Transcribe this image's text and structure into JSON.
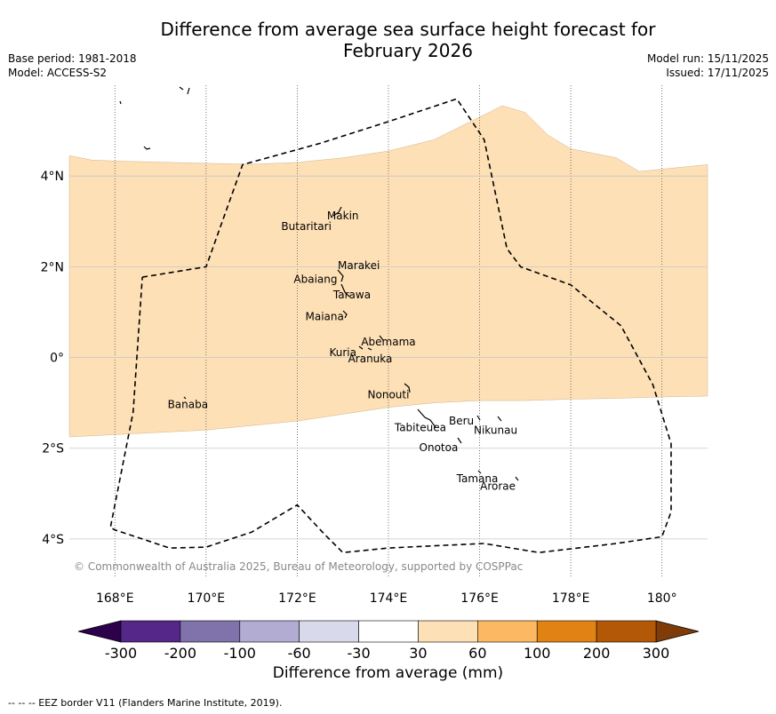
{
  "header": {
    "title_line1": "Difference from average sea surface height forecast for",
    "title_line2": "February 2026",
    "base_period": "Base period: 1981-2018",
    "model": "Model: ACCESS-S2",
    "model_run": "Model run: 15/11/2025",
    "issued": "Issued: 17/11/2025"
  },
  "map": {
    "extent_lon": [
      167,
      181
    ],
    "extent_lat": [
      -5,
      6
    ],
    "lon_ticks": [
      {
        "value": 168,
        "label": "168°E"
      },
      {
        "value": 170,
        "label": "170°E"
      },
      {
        "value": 172,
        "label": "172°E"
      },
      {
        "value": 174,
        "label": "174°E"
      },
      {
        "value": 176,
        "label": "176°E"
      },
      {
        "value": 178,
        "label": "178°E"
      },
      {
        "value": 180,
        "label": "180°"
      }
    ],
    "lat_ticks": [
      {
        "value": 4,
        "label": "4°N"
      },
      {
        "value": 2,
        "label": "2°N"
      },
      {
        "value": 0,
        "label": "0°"
      },
      {
        "value": -2,
        "label": "2°S"
      },
      {
        "value": -4,
        "label": "4°S"
      }
    ],
    "anomaly_band": {
      "range_mm": "30 to 60",
      "color": "#fee0b6",
      "north_edge": [
        [
          167,
          4.45
        ],
        [
          167.5,
          4.35
        ],
        [
          168,
          4.33
        ],
        [
          170,
          4.28
        ],
        [
          171,
          4.26
        ],
        [
          172,
          4.3
        ],
        [
          173,
          4.4
        ],
        [
          174,
          4.55
        ],
        [
          175,
          4.8
        ],
        [
          176,
          5.3
        ],
        [
          176.5,
          5.55
        ],
        [
          177,
          5.4
        ],
        [
          177.5,
          4.9
        ],
        [
          178,
          4.6
        ],
        [
          179,
          4.4
        ],
        [
          179.5,
          4.1
        ],
        [
          180,
          4.15
        ],
        [
          181,
          4.25
        ]
      ],
      "south_edge": [
        [
          167,
          -1.75
        ],
        [
          168,
          -1.7
        ],
        [
          170,
          -1.6
        ],
        [
          172,
          -1.4
        ],
        [
          173,
          -1.25
        ],
        [
          174,
          -1.1
        ],
        [
          175,
          -1.0
        ],
        [
          176,
          -0.95
        ],
        [
          177,
          -0.95
        ],
        [
          178,
          -0.92
        ],
        [
          179,
          -0.9
        ],
        [
          180,
          -0.87
        ],
        [
          181,
          -0.85
        ]
      ]
    },
    "eez_border": [
      [
        168.6,
        1.77
      ],
      [
        170,
        2.0
      ],
      [
        170.8,
        4.25
      ],
      [
        172.5,
        4.72
      ],
      [
        174,
        5.2
      ],
      [
        175.5,
        5.7
      ],
      [
        176.1,
        4.8
      ],
      [
        176.6,
        2.4
      ],
      [
        176.9,
        2.0
      ],
      [
        178,
        1.6
      ],
      [
        179.1,
        0.7
      ],
      [
        179.8,
        -0.6
      ],
      [
        180.2,
        -1.9
      ],
      [
        180.2,
        -3.4
      ],
      [
        180,
        -3.95
      ],
      [
        179,
        -4.1
      ],
      [
        177.3,
        -4.3
      ],
      [
        176.1,
        -4.1
      ],
      [
        175,
        -4.15
      ],
      [
        174,
        -4.2
      ],
      [
        173,
        -4.3
      ],
      [
        172.6,
        -3.9
      ],
      [
        172,
        -3.25
      ],
      [
        171,
        -3.85
      ],
      [
        170,
        -4.18
      ],
      [
        169.2,
        -4.2
      ],
      [
        168,
        -3.8
      ],
      [
        167.9,
        -3.75
      ],
      [
        168.4,
        -1.2
      ],
      [
        168.6,
        1.77
      ]
    ],
    "island_labels": [
      {
        "name": "Makin",
        "lon": 173.0,
        "lat": 3.12
      },
      {
        "name": "Butaritari",
        "lon": 172.2,
        "lat": 2.89
      },
      {
        "name": "Marakei",
        "lon": 173.35,
        "lat": 2.03
      },
      {
        "name": "Abaiang",
        "lon": 172.4,
        "lat": 1.72
      },
      {
        "name": "Tarawa",
        "lon": 173.2,
        "lat": 1.38
      },
      {
        "name": "Maiana",
        "lon": 172.6,
        "lat": 0.9
      },
      {
        "name": "Abemama",
        "lon": 174.0,
        "lat": 0.34
      },
      {
        "name": "Kuria",
        "lon": 173.0,
        "lat": 0.11
      },
      {
        "name": "Aranuka",
        "lon": 173.6,
        "lat": -0.03
      },
      {
        "name": "Nonouti",
        "lon": 174.0,
        "lat": -0.82
      },
      {
        "name": "Banaba",
        "lon": 169.6,
        "lat": -1.04
      },
      {
        "name": "Beru",
        "lon": 175.6,
        "lat": -1.4
      },
      {
        "name": "Nikunau",
        "lon": 176.35,
        "lat": -1.6
      },
      {
        "name": "Tabiteuea",
        "lon": 174.7,
        "lat": -1.55
      },
      {
        "name": "Onotoa",
        "lon": 175.1,
        "lat": -1.99
      },
      {
        "name": "Tamana",
        "lon": 175.95,
        "lat": -2.67
      },
      {
        "name": "Arorae",
        "lon": 176.4,
        "lat": -2.84
      }
    ],
    "copyright": "© Commonwealth of Australia 2025, Bureau of Meteorology, supported by COSPPac"
  },
  "colorbar": {
    "label": "Difference from average (mm)",
    "low_extend_color": "#2d004b",
    "high_extend_color": "#7f3b08",
    "bins": [
      {
        "color": "#542788"
      },
      {
        "color": "#8073ac"
      },
      {
        "color": "#b2abd2"
      },
      {
        "color": "#d8daeb"
      },
      {
        "color": "#ffffff"
      },
      {
        "color": "#fee0b6"
      },
      {
        "color": "#fdb863"
      },
      {
        "color": "#e08214"
      },
      {
        "color": "#b35806"
      }
    ],
    "tick_labels": [
      "-300",
      "-200",
      "-100",
      "-60",
      "-30",
      "30",
      "60",
      "100",
      "200",
      "300"
    ]
  },
  "footnote": "--  --  -- EEZ border V11 (Flanders Marine Institute, 2019)."
}
